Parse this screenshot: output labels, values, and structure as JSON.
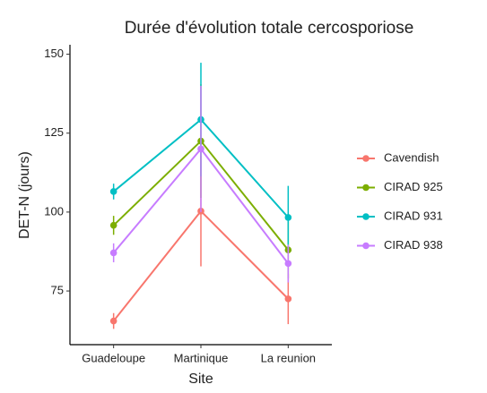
{
  "chart_data": {
    "type": "line",
    "title": "Durée d'évolution totale cercosporiose",
    "x_label": "Site",
    "y_label": "DET-N (jours)",
    "categories": [
      "Guadeloupe",
      "Martinique",
      "La reunion"
    ],
    "series": [
      {
        "name": "Cavendish",
        "color": "#F8766D",
        "values": [
          65.5,
          100.3,
          72.5
        ],
        "errors": [
          2.5,
          17.5,
          8
        ]
      },
      {
        "name": "CIRAD 925",
        "color": "#7CAE00",
        "values": [
          95.8,
          122.5,
          88
        ],
        "errors": [
          3,
          18,
          9
        ]
      },
      {
        "name": "CIRAD 931",
        "color": "#00BFC4",
        "values": [
          106.5,
          129.3,
          98.3
        ],
        "errors": [
          2.5,
          18,
          10
        ]
      },
      {
        "name": "CIRAD 938",
        "color": "#C77CFF",
        "values": [
          87.1,
          120,
          83.7
        ],
        "errors": [
          3,
          20,
          6
        ]
      }
    ],
    "ylim": [
      58,
      153
    ],
    "yticks": [
      75,
      100,
      125,
      150
    ],
    "grid": false,
    "legend": "right"
  }
}
